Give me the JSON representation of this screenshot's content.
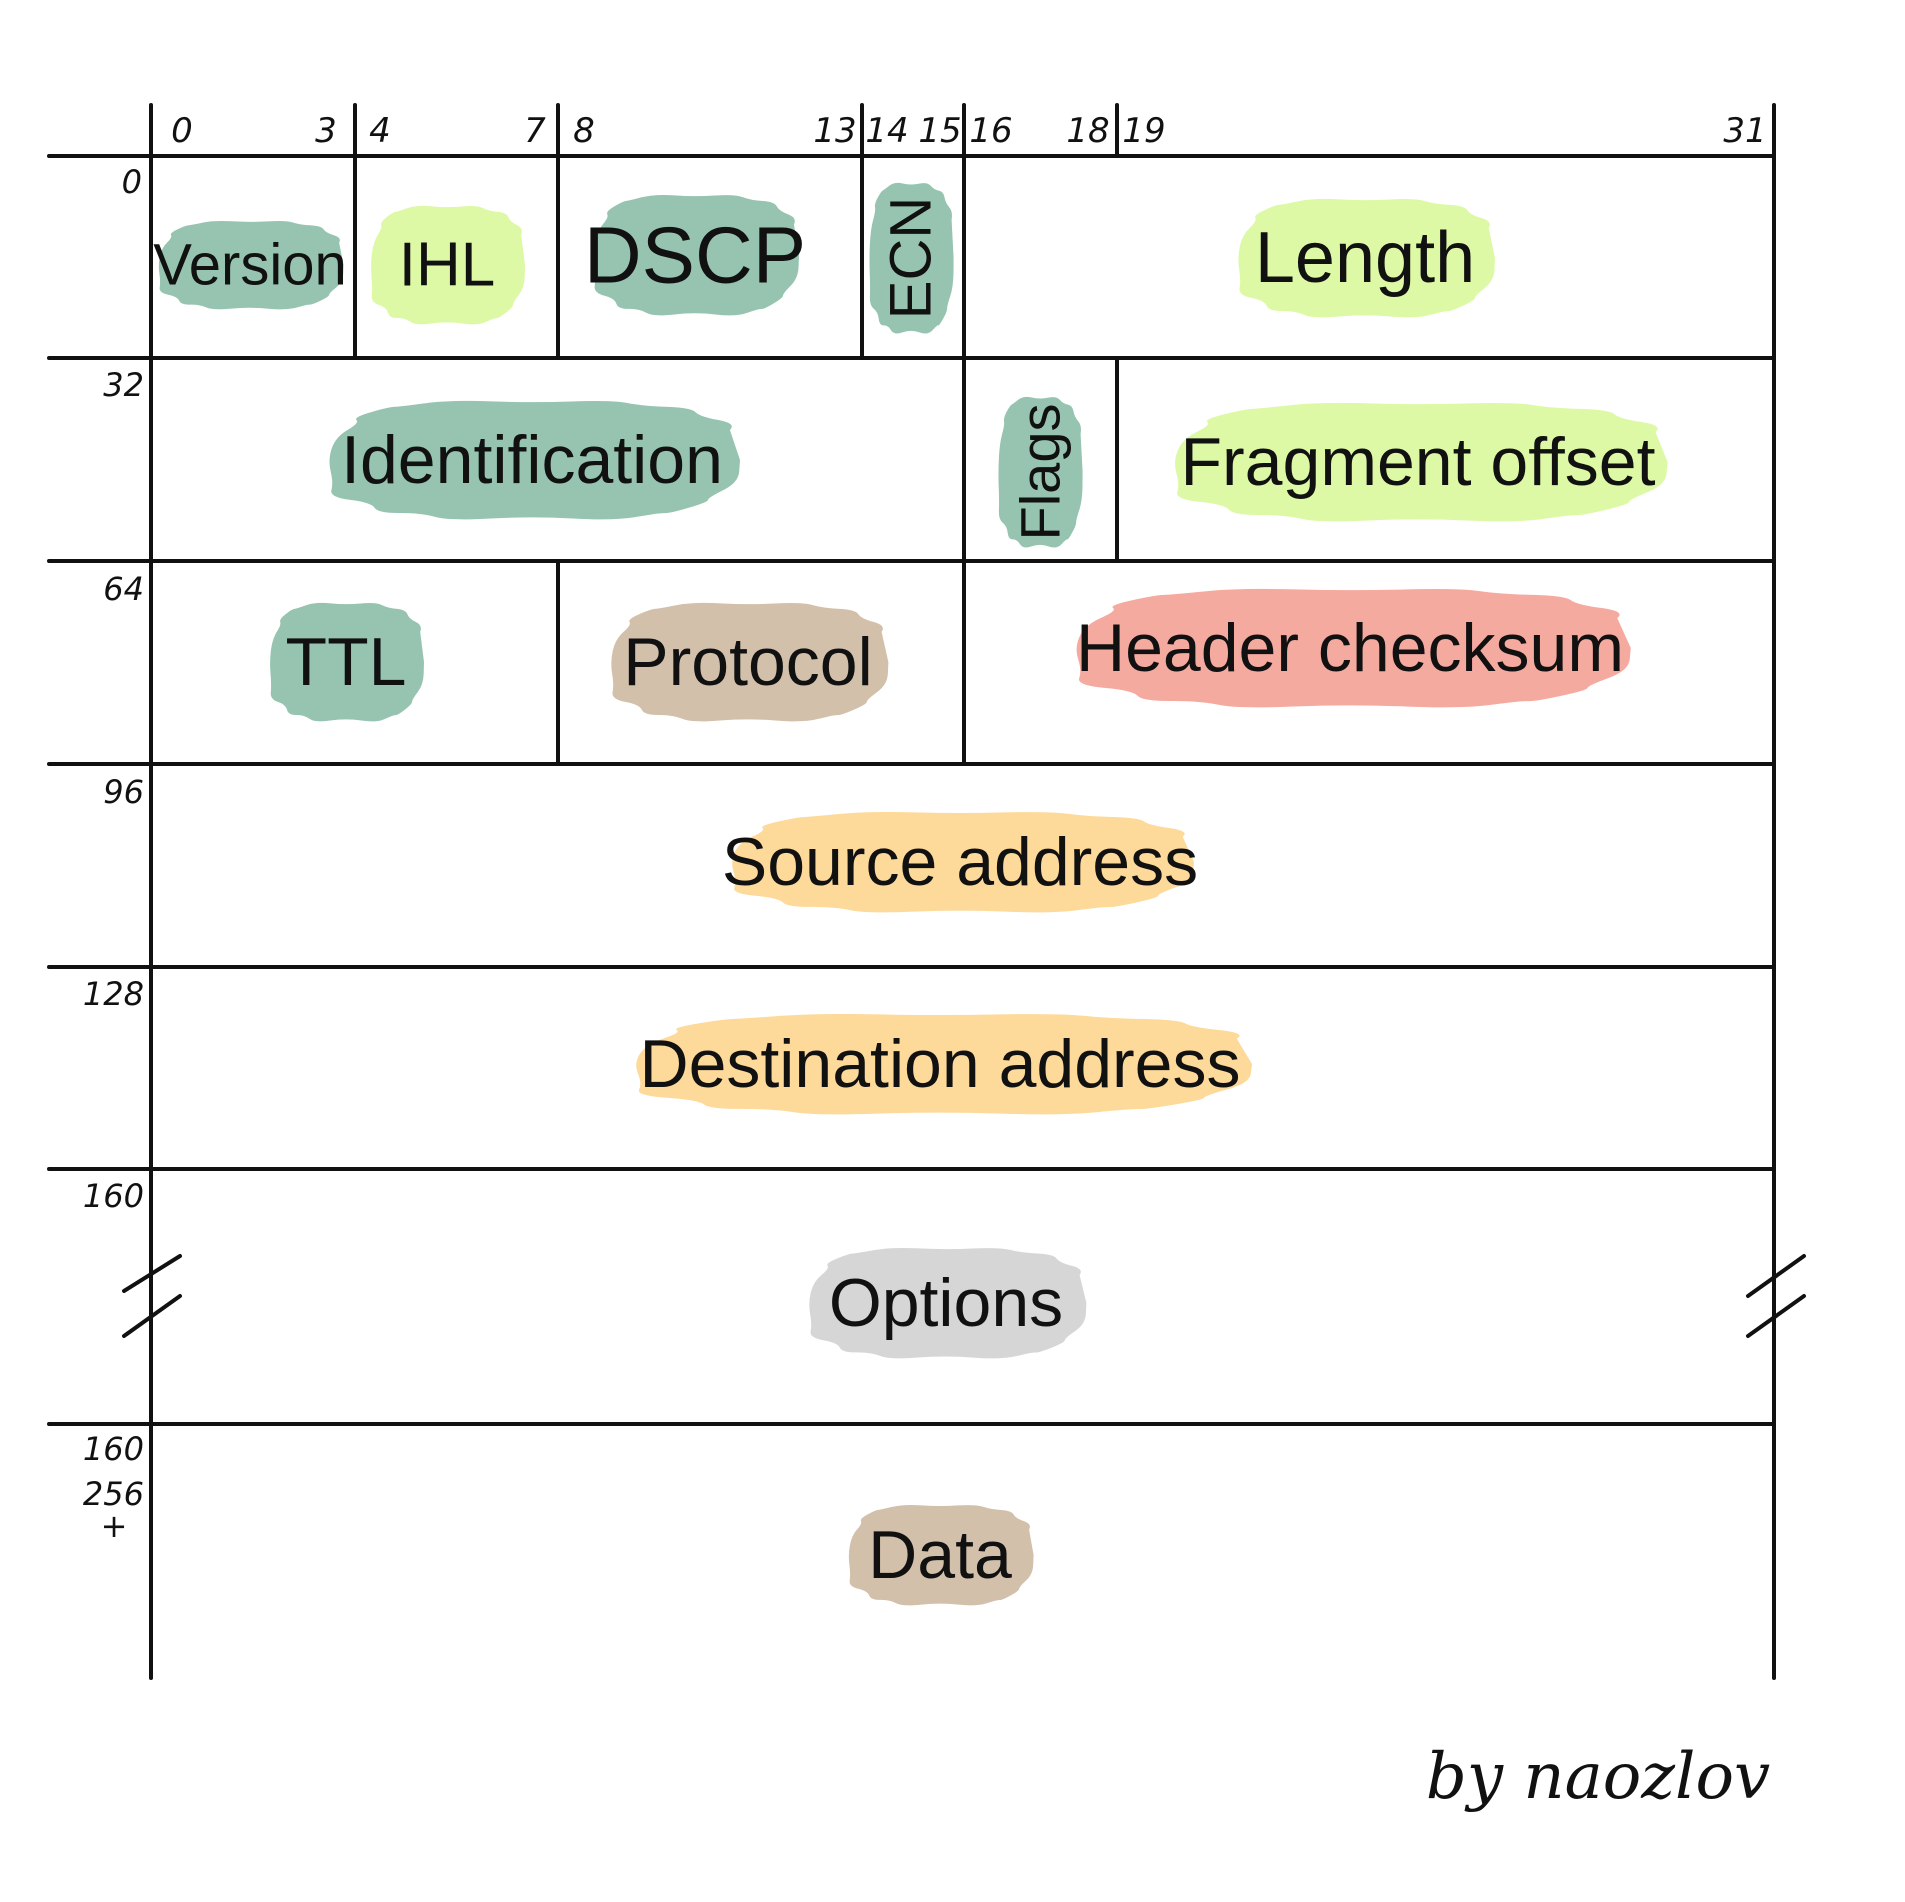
{
  "bit_ticks": [
    "0",
    "3",
    "4",
    "7",
    "8",
    "13",
    "14",
    "15",
    "16",
    "18",
    "19",
    "31"
  ],
  "row_offsets": [
    "0",
    "32",
    "64",
    "96",
    "128",
    "160",
    "160",
    "256",
    "+"
  ],
  "fields": [
    {
      "label": "Version",
      "color": "#97c4b0",
      "orientation": "horizontal"
    },
    {
      "label": "IHL",
      "color": "#ddf9a6",
      "orientation": "horizontal"
    },
    {
      "label": "DSCP",
      "color": "#97c4b0",
      "orientation": "horizontal"
    },
    {
      "label": "ECN",
      "color": "#97c4b0",
      "orientation": "vertical"
    },
    {
      "label": "Length",
      "color": "#ddf9a6",
      "orientation": "horizontal"
    },
    {
      "label": "Identification",
      "color": "#97c4b0",
      "orientation": "horizontal"
    },
    {
      "label": "Flags",
      "color": "#97c4b0",
      "orientation": "vertical"
    },
    {
      "label": "Fragment offset",
      "color": "#ddf9a6",
      "orientation": "horizontal"
    },
    {
      "label": "TTL",
      "color": "#97c4b0",
      "orientation": "horizontal"
    },
    {
      "label": "Protocol",
      "color": "#d2c0ab",
      "orientation": "horizontal"
    },
    {
      "label": "Header checksum",
      "color": "#f5aaa0",
      "orientation": "horizontal"
    },
    {
      "label": "Source address",
      "color": "#fdd99a",
      "orientation": "horizontal"
    },
    {
      "label": "Destination address",
      "color": "#fdd99a",
      "orientation": "horizontal"
    },
    {
      "label": "Options",
      "color": "#d6d6d6",
      "orientation": "horizontal"
    },
    {
      "label": "Data",
      "color": "#d2c0ab",
      "orientation": "horizontal"
    }
  ],
  "signature": "by naozlov"
}
